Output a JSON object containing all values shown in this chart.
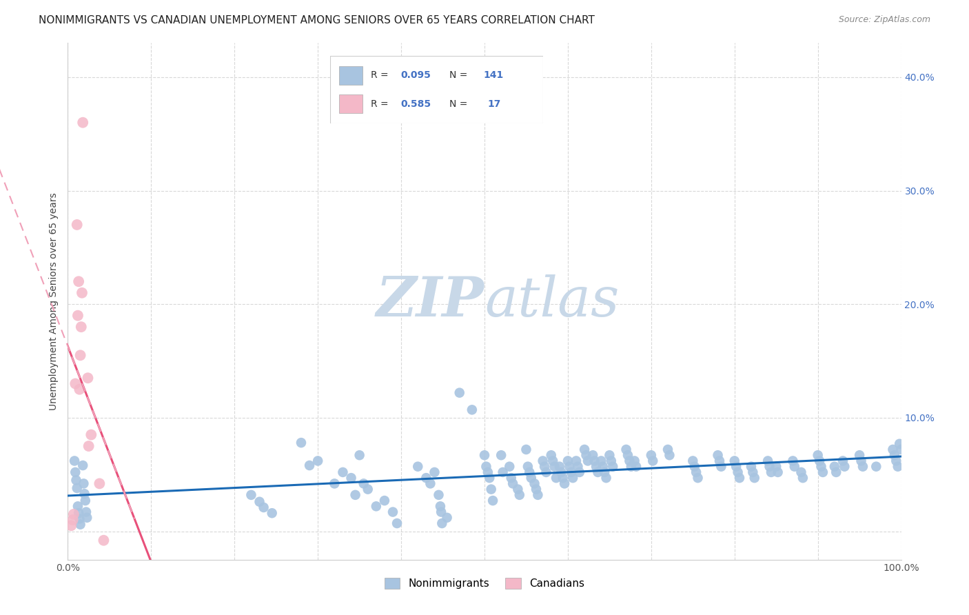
{
  "title": "NONIMMIGRANTS VS CANADIAN UNEMPLOYMENT AMONG SENIORS OVER 65 YEARS CORRELATION CHART",
  "source": "Source: ZipAtlas.com",
  "ylabel": "Unemployment Among Seniors over 65 years",
  "xlim": [
    0.0,
    1.0
  ],
  "ylim": [
    -0.025,
    0.43
  ],
  "xticks": [
    0.0,
    0.1,
    0.2,
    0.3,
    0.4,
    0.5,
    0.6,
    0.7,
    0.8,
    0.9,
    1.0
  ],
  "xticklabels": [
    "0.0%",
    "",
    "",
    "",
    "",
    "",
    "",
    "",
    "",
    "",
    "100.0%"
  ],
  "yticks": [
    0.0,
    0.1,
    0.2,
    0.3,
    0.4
  ],
  "yticklabels_right": [
    "",
    "10.0%",
    "20.0%",
    "30.0%",
    "40.0%"
  ],
  "legend1_label": "Nonimmigrants",
  "legend2_label": "Canadians",
  "nonimmigrant_color": "#a8c4e0",
  "canadian_color": "#f4b8c8",
  "regression_nonimmigrant_color": "#1a6ab5",
  "regression_canadian_color": "#e8507a",
  "regression_canadian_dash_color": "#f0a0b8",
  "background_color": "#ffffff",
  "grid_color": "#d8d8d8",
  "watermark_color": "#c8d8e8",
  "title_fontsize": 11,
  "axis_label_fontsize": 10,
  "tick_fontsize": 10,
  "right_tick_color": "#4472c4",
  "nonimmigrant_points": [
    [
      0.008,
      0.062
    ],
    [
      0.009,
      0.052
    ],
    [
      0.01,
      0.045
    ],
    [
      0.011,
      0.038
    ],
    [
      0.012,
      0.022
    ],
    [
      0.013,
      0.016
    ],
    [
      0.014,
      0.011
    ],
    [
      0.015,
      0.006
    ],
    [
      0.018,
      0.058
    ],
    [
      0.019,
      0.042
    ],
    [
      0.02,
      0.033
    ],
    [
      0.021,
      0.027
    ],
    [
      0.022,
      0.017
    ],
    [
      0.023,
      0.012
    ],
    [
      0.22,
      0.032
    ],
    [
      0.23,
      0.026
    ],
    [
      0.235,
      0.021
    ],
    [
      0.245,
      0.016
    ],
    [
      0.28,
      0.078
    ],
    [
      0.29,
      0.058
    ],
    [
      0.3,
      0.062
    ],
    [
      0.32,
      0.042
    ],
    [
      0.33,
      0.052
    ],
    [
      0.34,
      0.047
    ],
    [
      0.345,
      0.032
    ],
    [
      0.35,
      0.067
    ],
    [
      0.355,
      0.042
    ],
    [
      0.36,
      0.037
    ],
    [
      0.37,
      0.022
    ],
    [
      0.38,
      0.027
    ],
    [
      0.39,
      0.017
    ],
    [
      0.395,
      0.007
    ],
    [
      0.42,
      0.057
    ],
    [
      0.43,
      0.047
    ],
    [
      0.435,
      0.042
    ],
    [
      0.44,
      0.052
    ],
    [
      0.445,
      0.032
    ],
    [
      0.447,
      0.022
    ],
    [
      0.448,
      0.017
    ],
    [
      0.449,
      0.007
    ],
    [
      0.455,
      0.012
    ],
    [
      0.47,
      0.122
    ],
    [
      0.485,
      0.107
    ],
    [
      0.5,
      0.067
    ],
    [
      0.502,
      0.057
    ],
    [
      0.504,
      0.052
    ],
    [
      0.506,
      0.047
    ],
    [
      0.508,
      0.037
    ],
    [
      0.51,
      0.027
    ],
    [
      0.52,
      0.067
    ],
    [
      0.522,
      0.052
    ],
    [
      0.53,
      0.057
    ],
    [
      0.532,
      0.047
    ],
    [
      0.534,
      0.042
    ],
    [
      0.54,
      0.037
    ],
    [
      0.542,
      0.032
    ],
    [
      0.55,
      0.072
    ],
    [
      0.552,
      0.057
    ],
    [
      0.554,
      0.052
    ],
    [
      0.556,
      0.047
    ],
    [
      0.56,
      0.042
    ],
    [
      0.562,
      0.037
    ],
    [
      0.564,
      0.032
    ],
    [
      0.57,
      0.062
    ],
    [
      0.572,
      0.057
    ],
    [
      0.574,
      0.052
    ],
    [
      0.58,
      0.067
    ],
    [
      0.582,
      0.062
    ],
    [
      0.584,
      0.057
    ],
    [
      0.586,
      0.047
    ],
    [
      0.59,
      0.057
    ],
    [
      0.592,
      0.052
    ],
    [
      0.594,
      0.047
    ],
    [
      0.596,
      0.042
    ],
    [
      0.6,
      0.062
    ],
    [
      0.602,
      0.057
    ],
    [
      0.604,
      0.052
    ],
    [
      0.606,
      0.047
    ],
    [
      0.61,
      0.062
    ],
    [
      0.612,
      0.057
    ],
    [
      0.614,
      0.052
    ],
    [
      0.62,
      0.072
    ],
    [
      0.622,
      0.067
    ],
    [
      0.624,
      0.062
    ],
    [
      0.63,
      0.067
    ],
    [
      0.632,
      0.062
    ],
    [
      0.634,
      0.057
    ],
    [
      0.636,
      0.052
    ],
    [
      0.64,
      0.062
    ],
    [
      0.642,
      0.057
    ],
    [
      0.644,
      0.052
    ],
    [
      0.646,
      0.047
    ],
    [
      0.65,
      0.067
    ],
    [
      0.652,
      0.062
    ],
    [
      0.654,
      0.057
    ],
    [
      0.67,
      0.072
    ],
    [
      0.672,
      0.067
    ],
    [
      0.674,
      0.062
    ],
    [
      0.676,
      0.057
    ],
    [
      0.68,
      0.062
    ],
    [
      0.682,
      0.057
    ],
    [
      0.7,
      0.067
    ],
    [
      0.702,
      0.062
    ],
    [
      0.72,
      0.072
    ],
    [
      0.722,
      0.067
    ],
    [
      0.75,
      0.062
    ],
    [
      0.752,
      0.057
    ],
    [
      0.754,
      0.052
    ],
    [
      0.756,
      0.047
    ],
    [
      0.78,
      0.067
    ],
    [
      0.782,
      0.062
    ],
    [
      0.784,
      0.057
    ],
    [
      0.8,
      0.062
    ],
    [
      0.802,
      0.057
    ],
    [
      0.804,
      0.052
    ],
    [
      0.806,
      0.047
    ],
    [
      0.82,
      0.057
    ],
    [
      0.822,
      0.052
    ],
    [
      0.824,
      0.047
    ],
    [
      0.84,
      0.062
    ],
    [
      0.842,
      0.057
    ],
    [
      0.844,
      0.052
    ],
    [
      0.85,
      0.057
    ],
    [
      0.852,
      0.052
    ],
    [
      0.87,
      0.062
    ],
    [
      0.872,
      0.057
    ],
    [
      0.88,
      0.052
    ],
    [
      0.882,
      0.047
    ],
    [
      0.9,
      0.067
    ],
    [
      0.902,
      0.062
    ],
    [
      0.904,
      0.057
    ],
    [
      0.906,
      0.052
    ],
    [
      0.92,
      0.057
    ],
    [
      0.922,
      0.052
    ],
    [
      0.93,
      0.062
    ],
    [
      0.932,
      0.057
    ],
    [
      0.95,
      0.067
    ],
    [
      0.952,
      0.062
    ],
    [
      0.954,
      0.057
    ],
    [
      0.97,
      0.057
    ],
    [
      0.99,
      0.072
    ],
    [
      0.992,
      0.067
    ],
    [
      0.994,
      0.062
    ],
    [
      0.996,
      0.057
    ],
    [
      0.998,
      0.077
    ],
    [
      1.0,
      0.072
    ]
  ],
  "canadian_points": [
    [
      0.004,
      0.005
    ],
    [
      0.006,
      0.01
    ],
    [
      0.007,
      0.015
    ],
    [
      0.009,
      0.13
    ],
    [
      0.011,
      0.27
    ],
    [
      0.012,
      0.19
    ],
    [
      0.013,
      0.22
    ],
    [
      0.014,
      0.125
    ],
    [
      0.015,
      0.155
    ],
    [
      0.016,
      0.18
    ],
    [
      0.017,
      0.21
    ],
    [
      0.018,
      0.36
    ],
    [
      0.024,
      0.135
    ],
    [
      0.025,
      0.075
    ],
    [
      0.028,
      0.085
    ],
    [
      0.038,
      0.042
    ],
    [
      0.043,
      -0.008
    ]
  ]
}
